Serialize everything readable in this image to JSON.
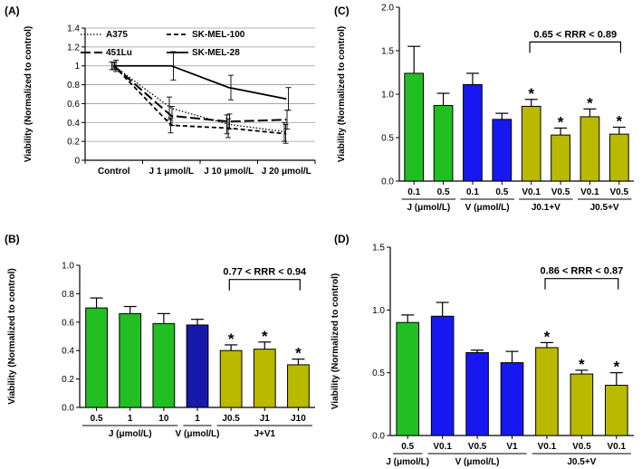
{
  "chart_data": [
    {
      "panel": "(A)",
      "type": "line",
      "ylabel": "Viability (Normalized to control)",
      "ylim": [
        0,
        1.4
      ],
      "yticks": [
        "0",
        "0.2",
        "0.4",
        "0.6",
        "0.8",
        "1",
        "1.2",
        "1.4"
      ],
      "grid": true,
      "categories": [
        "Control",
        "J 1 μmol/L",
        "J 10 μmol/L",
        "J 20 μmol/L"
      ],
      "legend": "top",
      "series": [
        {
          "name": "A375",
          "values": [
            1.0,
            0.55,
            0.38,
            0.3
          ],
          "errors": [
            0.04,
            0.12,
            0.1,
            0.1
          ],
          "style": "dotted"
        },
        {
          "name": "SK-MEL-100",
          "values": [
            1.0,
            0.37,
            0.34,
            0.28
          ],
          "errors": [
            0.04,
            0.08,
            0.1,
            0.1
          ],
          "style": "dashed"
        },
        {
          "name": "451Lu",
          "values": [
            1.0,
            0.47,
            0.41,
            0.43
          ],
          "errors": [
            0.04,
            0.1,
            0.08,
            0.1
          ],
          "style": "longdash"
        },
        {
          "name": "SK-MEL-28",
          "values": [
            1.0,
            1.0,
            0.77,
            0.65
          ],
          "errors": [
            0.06,
            0.15,
            0.13,
            0.12
          ],
          "style": "solid"
        }
      ]
    },
    {
      "panel": "(B)",
      "type": "bar",
      "ylabel": "Viability (Normalized to control)",
      "ylim": [
        0,
        1.0
      ],
      "yticks": [
        "0.0",
        "0.2",
        "0.4",
        "0.6",
        "0.8",
        "1.0"
      ],
      "categories": [
        "0.5",
        "1",
        "10",
        "1",
        "J0.5",
        "J1",
        "J10"
      ],
      "values": [
        0.7,
        0.66,
        0.59,
        0.58,
        0.4,
        0.41,
        0.3
      ],
      "errors": [
        0.07,
        0.05,
        0.07,
        0.04,
        0.04,
        0.05,
        0.04
      ],
      "colors": [
        "#22bf22",
        "#22bf22",
        "#22bf22",
        "#1818a8",
        "#b9b900",
        "#b9b900",
        "#b9b900"
      ],
      "stars": [
        false,
        false,
        false,
        false,
        true,
        true,
        true
      ],
      "groups": [
        {
          "label": "J (μmol/L)",
          "from": 0,
          "to": 2
        },
        {
          "label": "V (μmol/L)",
          "from": 3,
          "to": 3
        },
        {
          "label": "J+V1",
          "from": 4,
          "to": 6
        }
      ],
      "annotation": {
        "text": "0.77 < RRR < 0.94",
        "from": 4,
        "to": 6,
        "y": 0.9
      }
    },
    {
      "panel": "(C)",
      "type": "bar",
      "ylabel": "Viability (Normalized to control)",
      "ylim": [
        0,
        2.0
      ],
      "yticks": [
        "0.0",
        "0.5",
        "1.0",
        "1.5",
        "2.0"
      ],
      "categories": [
        "0.1",
        "0.5",
        "0.1",
        "0.5",
        "V0.1",
        "V0.5",
        "V0.1",
        "V0.5"
      ],
      "values": [
        1.24,
        0.87,
        1.11,
        0.71,
        0.86,
        0.53,
        0.74,
        0.54
      ],
      "errors": [
        0.31,
        0.14,
        0.13,
        0.07,
        0.08,
        0.08,
        0.09,
        0.08
      ],
      "colors": [
        "#22bf22",
        "#22bf22",
        "#1717f0",
        "#1717f0",
        "#b9b900",
        "#b9b900",
        "#b9b900",
        "#b9b900"
      ],
      "stars": [
        false,
        false,
        false,
        false,
        true,
        true,
        true,
        true
      ],
      "groups": [
        {
          "label": "J (μmol/L)",
          "from": 0,
          "to": 1
        },
        {
          "label": "V (μmol/L)",
          "from": 2,
          "to": 3
        },
        {
          "label": "J0.1+V",
          "from": 4,
          "to": 5
        },
        {
          "label": "J0.5+V",
          "from": 6,
          "to": 7
        }
      ],
      "annotation": {
        "text": "0.65 < RRR < 0.89",
        "from": 4,
        "to": 7,
        "y": 1.6
      }
    },
    {
      "panel": "(D)",
      "type": "bar",
      "ylabel": "Viability (Normalized to control)",
      "ylim": [
        0,
        1.5
      ],
      "yticks": [
        "0.0",
        "0.5",
        "1.0",
        "1.5"
      ],
      "categories": [
        "0.5",
        "V0.1",
        "V0.5",
        "V1",
        "V0.1",
        "V0.5",
        "V0.1"
      ],
      "values": [
        0.9,
        0.95,
        0.66,
        0.58,
        0.7,
        0.49,
        0.4
      ],
      "errors": [
        0.06,
        0.11,
        0.02,
        0.09,
        0.04,
        0.03,
        0.1
      ],
      "colors": [
        "#22bf22",
        "#1717f0",
        "#1717f0",
        "#1717f0",
        "#b9b900",
        "#b9b900",
        "#b9b900"
      ],
      "stars": [
        false,
        false,
        false,
        false,
        true,
        true,
        true
      ],
      "groups": [
        {
          "label": "J (μmol/L)",
          "from": 0,
          "to": 0
        },
        {
          "label": "V (μmol/L)",
          "from": 1,
          "to": 3
        },
        {
          "label": "J0.5+V",
          "from": 4,
          "to": 6
        }
      ],
      "annotation": {
        "text": "0.86 < RRR < 0.87",
        "from": 4,
        "to": 6,
        "y": 1.25
      }
    }
  ]
}
